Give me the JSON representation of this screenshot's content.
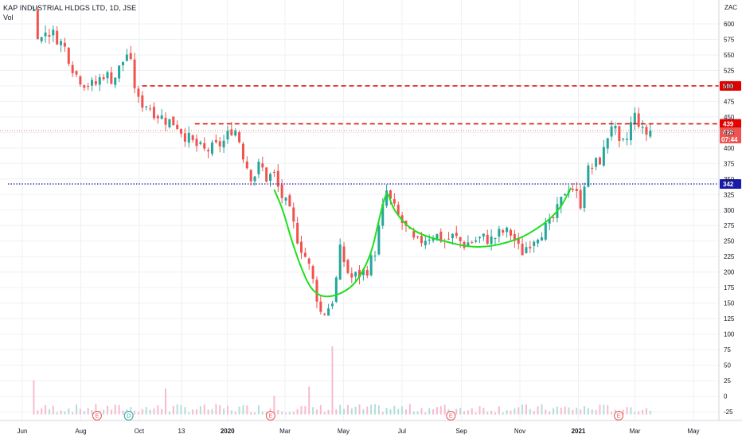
{
  "header": {
    "symbol": "KAP INDUSTRIAL HLDGS LTD, 1D, JSE",
    "volume_label": "Vol"
  },
  "colors": {
    "up": "#26a69a",
    "down": "#ef5350",
    "vol_up": "#b2dfdb",
    "vol_down": "#f8bbd0",
    "resistance": "#e00000",
    "support": "#1a1aa8",
    "last_price": "#ef5350",
    "pattern": "#1ee01e",
    "grid": "#eef0f3",
    "axis_text": "#131722"
  },
  "chart_data": {
    "type": "candlestick",
    "title": "KAP INDUSTRIAL HLDGS LTD, 1D, JSE",
    "currency": "ZAC",
    "y_ticks": [
      600,
      575,
      550,
      525,
      500,
      475,
      450,
      425,
      400,
      375,
      350,
      325,
      300,
      275,
      250,
      225,
      200,
      175,
      150,
      125,
      100,
      75,
      50,
      25,
      0,
      -25
    ],
    "ylim": [
      -35,
      625
    ],
    "x_ticks": [
      {
        "label": "Jun",
        "day": 0
      },
      {
        "label": "Aug",
        "day": 61
      },
      {
        "label": "Oct",
        "day": 122
      },
      {
        "label": "13",
        "day": 166
      },
      {
        "label": "2020",
        "day": 214,
        "bold": true
      },
      {
        "label": "Mar",
        "day": 274
      },
      {
        "label": "May",
        "day": 335
      },
      {
        "label": "Jul",
        "day": 396
      },
      {
        "label": "Sep",
        "day": 458
      },
      {
        "label": "Nov",
        "day": 519
      },
      {
        "label": "2021",
        "day": 580,
        "bold": true
      },
      {
        "label": "Mar",
        "day": 639
      },
      {
        "label": "May",
        "day": 700
      }
    ],
    "xlim": [
      -15,
      750
    ],
    "price_waypoints": [
      [
        12,
        620
      ],
      [
        18,
        570
      ],
      [
        25,
        590
      ],
      [
        35,
        580
      ],
      [
        45,
        560
      ],
      [
        55,
        520
      ],
      [
        65,
        505
      ],
      [
        75,
        500
      ],
      [
        85,
        520
      ],
      [
        95,
        510
      ],
      [
        105,
        540
      ],
      [
        110,
        555
      ],
      [
        115,
        520
      ],
      [
        120,
        475
      ],
      [
        130,
        470
      ],
      [
        140,
        455
      ],
      [
        150,
        445
      ],
      [
        160,
        440
      ],
      [
        170,
        420
      ],
      [
        180,
        405
      ],
      [
        190,
        395
      ],
      [
        200,
        400
      ],
      [
        210,
        410
      ],
      [
        220,
        435
      ],
      [
        225,
        420
      ],
      [
        232,
        380
      ],
      [
        240,
        350
      ],
      [
        248,
        375
      ],
      [
        255,
        350
      ],
      [
        262,
        360
      ],
      [
        268,
        330
      ],
      [
        278,
        300
      ],
      [
        288,
        250
      ],
      [
        298,
        215
      ],
      [
        305,
        175
      ],
      [
        312,
        130
      ],
      [
        320,
        145
      ],
      [
        325,
        160
      ],
      [
        332,
        240
      ],
      [
        336,
        215
      ],
      [
        342,
        190
      ],
      [
        350,
        195
      ],
      [
        360,
        205
      ],
      [
        368,
        235
      ],
      [
        375,
        295
      ],
      [
        380,
        330
      ],
      [
        385,
        310
      ],
      [
        392,
        290
      ],
      [
        400,
        270
      ],
      [
        410,
        245
      ],
      [
        420,
        255
      ],
      [
        430,
        262
      ],
      [
        440,
        250
      ],
      [
        450,
        258
      ],
      [
        460,
        245
      ],
      [
        470,
        250
      ],
      [
        480,
        255
      ],
      [
        490,
        252
      ],
      [
        500,
        265
      ],
      [
        510,
        262
      ],
      [
        520,
        230
      ],
      [
        530,
        250
      ],
      [
        540,
        265
      ],
      [
        550,
        275
      ],
      [
        560,
        305
      ],
      [
        568,
        340
      ],
      [
        575,
        335
      ],
      [
        582,
        310
      ],
      [
        588,
        360
      ],
      [
        595,
        370
      ],
      [
        605,
        385
      ],
      [
        612,
        430
      ],
      [
        616,
        445
      ],
      [
        622,
        400
      ],
      [
        630,
        410
      ],
      [
        635,
        440
      ],
      [
        640,
        455
      ],
      [
        648,
        420
      ],
      [
        655,
        428
      ]
    ],
    "candle_count": 160,
    "last_price": 428,
    "last_price_countdown": "07:44",
    "horizontal_levels": [
      {
        "value": 500,
        "label": "500",
        "style": "dashed",
        "color": "resistance",
        "from_day": 125
      },
      {
        "value": 439,
        "label": "439",
        "style": "dashed",
        "color": "resistance",
        "from_day": 180
      },
      {
        "value": 342,
        "label": "342",
        "style": "dotted",
        "color": "support",
        "from_day": -15
      }
    ],
    "last_price_line": {
      "value": 428,
      "style": "dotted"
    },
    "pattern_curve": [
      [
        263,
        332
      ],
      [
        272,
        300
      ],
      [
        280,
        255
      ],
      [
        290,
        210
      ],
      [
        300,
        175
      ],
      [
        310,
        162
      ],
      [
        320,
        160
      ],
      [
        332,
        165
      ],
      [
        345,
        178
      ],
      [
        355,
        200
      ],
      [
        365,
        235
      ],
      [
        372,
        285
      ],
      [
        378,
        320
      ],
      [
        381,
        330
      ],
      [
        386,
        305
      ],
      [
        395,
        285
      ],
      [
        405,
        270
      ],
      [
        420,
        258
      ],
      [
        440,
        250
      ],
      [
        460,
        242
      ],
      [
        480,
        240
      ],
      [
        500,
        245
      ],
      [
        520,
        255
      ],
      [
        535,
        268
      ],
      [
        550,
        285
      ],
      [
        562,
        305
      ],
      [
        572,
        335
      ]
    ],
    "volume_axis_zero": 0,
    "events": [
      {
        "label": "E",
        "day": 78,
        "color": "#ef5350"
      },
      {
        "label": "D",
        "day": 111,
        "color": "#26a69a"
      },
      {
        "label": "E",
        "day": 259,
        "color": "#ef5350"
      },
      {
        "label": "E",
        "day": 447,
        "color": "#ef5350"
      },
      {
        "label": "E",
        "day": 622,
        "color": "#ef5350"
      }
    ],
    "volume_spikes": [
      {
        "day": 12,
        "value": 55
      },
      {
        "day": 148,
        "value": 50
      },
      {
        "day": 150,
        "value": 42
      },
      {
        "day": 262,
        "value": 30
      },
      {
        "day": 300,
        "value": 45
      },
      {
        "day": 322,
        "value": 110
      },
      {
        "day": 552,
        "value": 10
      },
      {
        "day": 600,
        "value": 7
      },
      {
        "day": 630,
        "value": 12
      }
    ]
  }
}
